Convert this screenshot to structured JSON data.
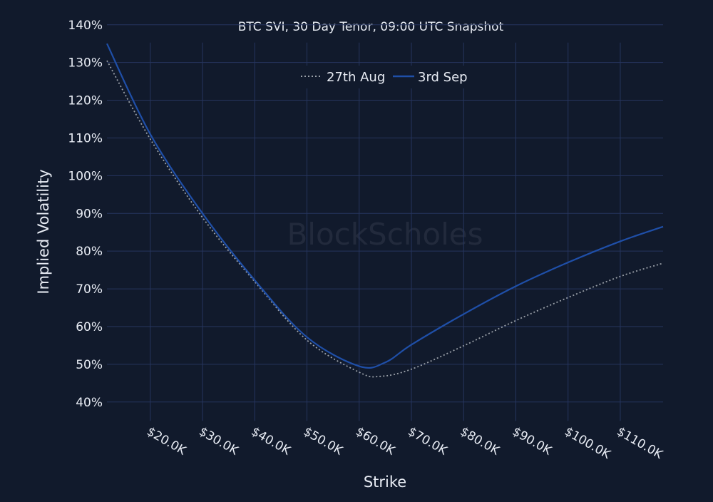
{
  "chart_data": {
    "type": "line",
    "title": "BTC SVI, 30 Day Tenor, 09:00 UTC Snapshot",
    "xlabel": "Strike",
    "ylabel": "Implied Volatility",
    "watermark": "BlockScholes",
    "xlim": [
      11.7,
      118.2
    ],
    "ylim": [
      35,
      140
    ],
    "x_ticks": [
      20,
      30,
      40,
      50,
      60,
      70,
      80,
      90,
      100,
      110
    ],
    "x_tick_labels": [
      "$20.0K",
      "$30.0K",
      "$40.0K",
      "$50.0K",
      "$60.0K",
      "$70.0K",
      "$80.0K",
      "$90.0K",
      "$100.0K",
      "$110.0K"
    ],
    "y_ticks": [
      40,
      50,
      60,
      70,
      80,
      90,
      100,
      110,
      120,
      130,
      140
    ],
    "y_tick_labels": [
      "40%",
      "50%",
      "60%",
      "70%",
      "80%",
      "90%",
      "100%",
      "110%",
      "120%",
      "130%",
      "140%"
    ],
    "grid": true,
    "legend_placement": "top-center",
    "x_units": "strike, $K",
    "y_units": "%",
    "series": [
      {
        "name": "27th Aug",
        "color": "#9aa0a8",
        "dash": "dotted",
        "x": [
          11.7,
          20,
          30,
          40,
          50,
          60,
          64,
          70,
          80,
          90,
          100,
          110,
          118.2
        ],
        "y": [
          130.5,
          109.7,
          88.9,
          71.9,
          56.4,
          47.9,
          46.8,
          48.7,
          54.9,
          61.6,
          67.7,
          73.3,
          76.8
        ]
      },
      {
        "name": "3rd Sep",
        "color": "#1f4fa8",
        "dash": "solid",
        "x": [
          11.7,
          20,
          30,
          40,
          50,
          60,
          65,
          70,
          80,
          90,
          100,
          110,
          118.2
        ],
        "y": [
          135,
          111,
          90,
          72.3,
          57.2,
          49.5,
          50.5,
          55.2,
          63.3,
          70.7,
          77,
          82.6,
          86.5
        ]
      }
    ]
  },
  "colors": {
    "background": "#111a2c",
    "grid": "#26355e"
  }
}
